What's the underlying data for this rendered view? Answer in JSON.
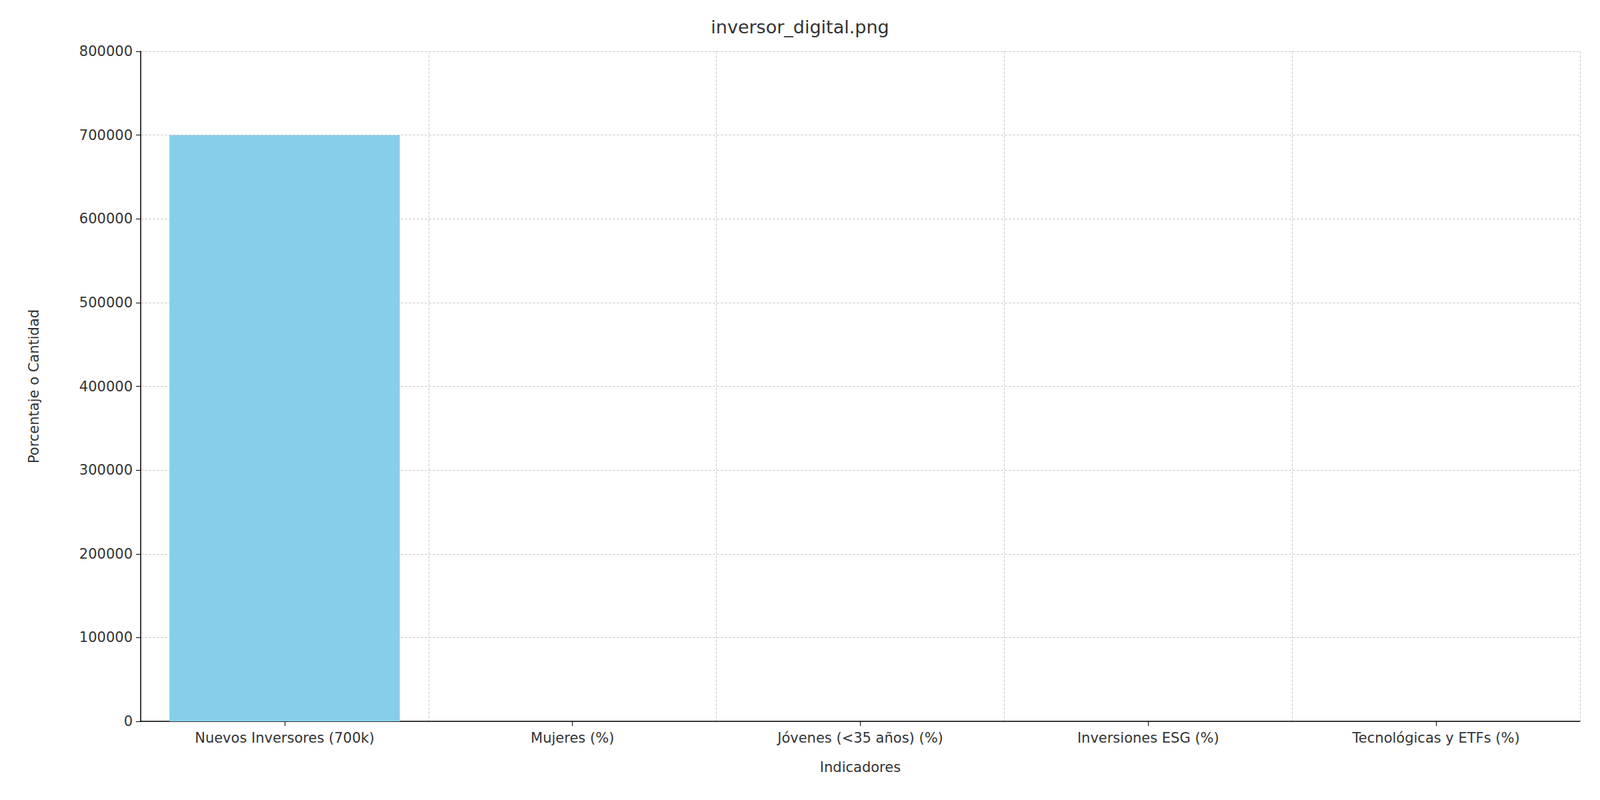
{
  "chart_data": {
    "type": "bar",
    "title": "inversor_digital.png",
    "x_label": "Indicadores",
    "y_label": "Porcentaje o Cantidad",
    "categories": [
      "Nuevos Inversores (700k)",
      "Mujeres (%)",
      "Jóvenes (<35 años) (%)",
      "Inversiones ESG (%)",
      "Tecnológicas y ETFs (%)"
    ],
    "values": [
      700000,
      0,
      0,
      0,
      0
    ],
    "color": "#87ceeb",
    "ylim": [
      0,
      800000
    ],
    "yticks": [
      0,
      100000,
      200000,
      300000,
      400000,
      500000,
      600000,
      700000,
      800000
    ],
    "grid": true
  }
}
